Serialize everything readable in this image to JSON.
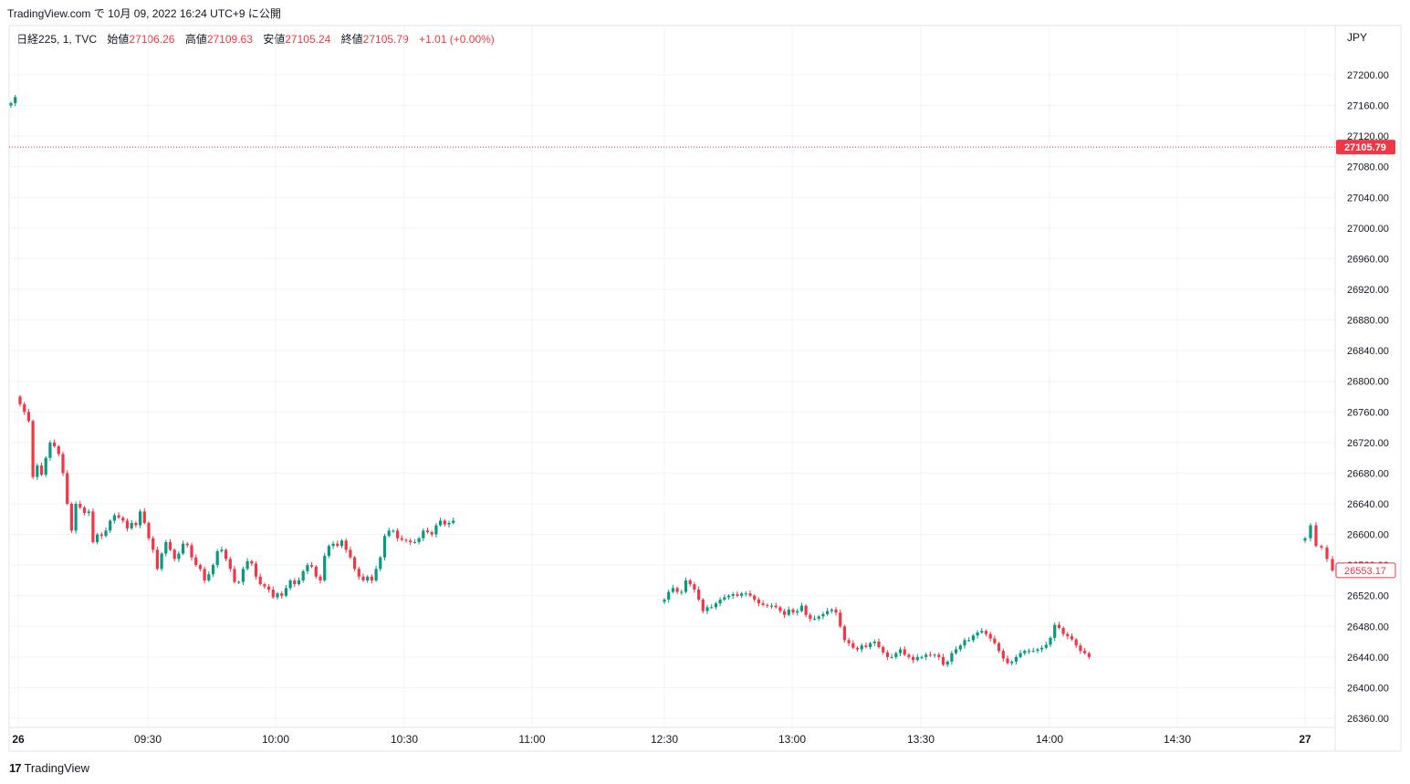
{
  "header": {
    "site": "TradingView.com",
    "pub_prefix": "で",
    "date_text": "10月 09, 2022 16:24 UTC+9",
    "pub_suffix": "に公開"
  },
  "legend": {
    "symbol": "日経225, 1, TVC",
    "open_label": "始値",
    "open": "27106.26",
    "high_label": "高値",
    "high": "27109.63",
    "low_label": "安値",
    "low": "27105.24",
    "close_label": "終値",
    "close": "27105.79",
    "change": "+1.01 (+0.00%)"
  },
  "currency": "JPY",
  "footer": {
    "brand": "TradingView",
    "logo_glyph": "17"
  },
  "colors": {
    "up": "#089981",
    "down": "#f23645",
    "grid": "#f0f3fa",
    "axis_text": "#131722"
  },
  "chart_data": {
    "type": "candlestick",
    "ylim": [
      26345,
      27255
    ],
    "y_ticks": [
      26360,
      26400,
      26440,
      26480,
      26520,
      26560,
      26600,
      26640,
      26680,
      26720,
      26760,
      26800,
      26840,
      26880,
      26920,
      26960,
      27000,
      27040,
      27080,
      27120,
      27160,
      27200
    ],
    "x_labels": [
      "26",
      "09:30",
      "10:00",
      "10:30",
      "11:00",
      "12:30",
      "13:00",
      "13:30",
      "14:00",
      "14:30",
      "27"
    ],
    "last_price": 27105.79,
    "last_price_label": "27105.79",
    "current_price": 26553.17,
    "current_price_label": "26553.17",
    "segments": [
      {
        "name": "day26-close",
        "closes": [
          27163,
          27171
        ]
      },
      {
        "name": "morning",
        "closes": [
          26770,
          26760,
          26748,
          26675,
          26690,
          26678,
          26700,
          26720,
          26715,
          26705,
          26680,
          26640,
          26605,
          26640,
          26635,
          26628,
          26630,
          26590,
          26600,
          26598,
          26605,
          26618,
          26625,
          26622,
          26618,
          26608,
          26615,
          26612,
          26630,
          26615,
          26595,
          26580,
          26555,
          26575,
          26590,
          26580,
          26568,
          26575,
          26588,
          26586,
          26570,
          26560,
          26555,
          26540,
          26548,
          26560,
          26578,
          26580,
          26568,
          26555,
          26538,
          26538,
          26555,
          26565,
          26562,
          26545,
          26535,
          26532,
          26528,
          26518,
          26523,
          26520,
          26530,
          26540,
          26535,
          26540,
          26552,
          26560,
          26558,
          26545,
          26540,
          26572,
          26585,
          26588,
          26585,
          26592,
          26580,
          26570,
          26555,
          26545,
          26540,
          26545,
          26540,
          26555,
          26570,
          26598,
          26605,
          26605,
          26595,
          26593,
          26592,
          26590,
          26590,
          26595,
          26605,
          26603,
          26600,
          26612,
          26618,
          26613,
          26615,
          26618
        ]
      },
      {
        "name": "afternoon",
        "closes": [
          26515,
          26525,
          26530,
          26525,
          26525,
          26540,
          26535,
          26528,
          26515,
          26500,
          26505,
          26505,
          26510,
          26515,
          26518,
          26520,
          26522,
          26520,
          26523,
          26523,
          26520,
          26515,
          26510,
          26508,
          26507,
          26507,
          26505,
          26500,
          26495,
          26502,
          26498,
          26500,
          26507,
          26495,
          26490,
          26490,
          26493,
          26496,
          26500,
          26502,
          26498,
          26480,
          26462,
          26458,
          26452,
          26450,
          26455,
          26453,
          26458,
          26460,
          26453,
          26446,
          26440,
          26440,
          26445,
          26450,
          26443,
          26440,
          26436,
          26440,
          26440,
          26443,
          26442,
          26443,
          26440,
          26430,
          26434,
          26445,
          26450,
          26455,
          26462,
          26462,
          26468,
          26472,
          26474,
          26470,
          26464,
          26458,
          26448,
          26438,
          26432,
          26434,
          26440,
          26445,
          26448,
          26448,
          26448,
          26450,
          26452,
          26456,
          26465,
          26482,
          26478,
          26470,
          26467,
          26463,
          26455,
          26448,
          26445,
          26440
        ]
      },
      {
        "name": "day27-open",
        "closes": [
          26595,
          26612,
          26585,
          26583,
          26568,
          26553
        ]
      }
    ]
  }
}
